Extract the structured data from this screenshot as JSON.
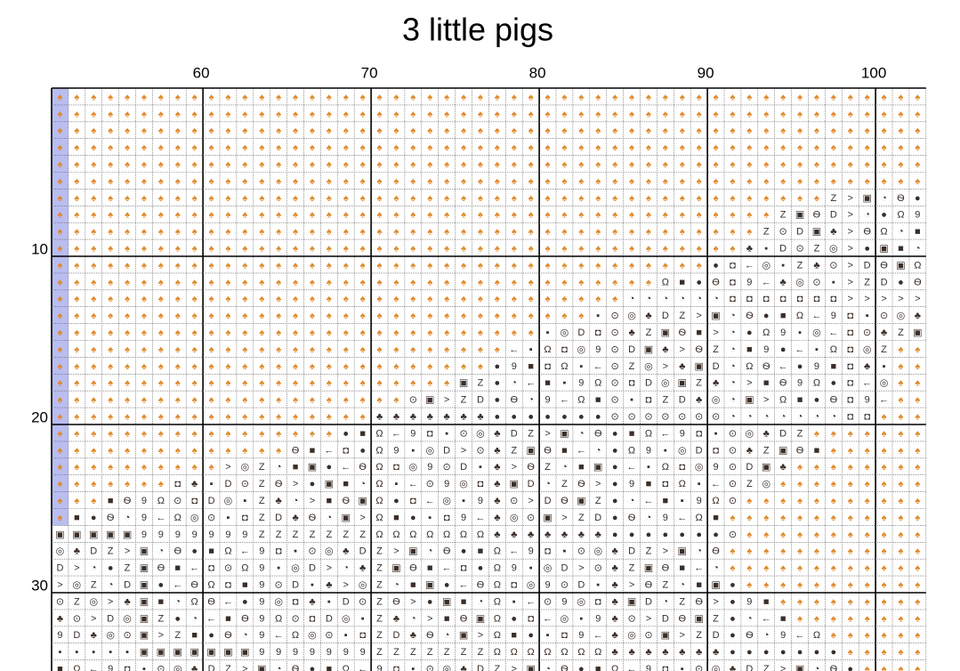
{
  "title": "3 little pigs",
  "column_labels": [
    60,
    70,
    80,
    90,
    100
  ],
  "row_labels": [
    10,
    20,
    30
  ],
  "fill_symbol": "♠",
  "symbols": [
    "●",
    "■",
    "Ω",
    "←",
    "9",
    "◘",
    "▪",
    "⊙",
    "◎",
    "♣",
    "D",
    "Z",
    ">",
    "▣",
    "◔",
    "Ѳ"
  ]
}
